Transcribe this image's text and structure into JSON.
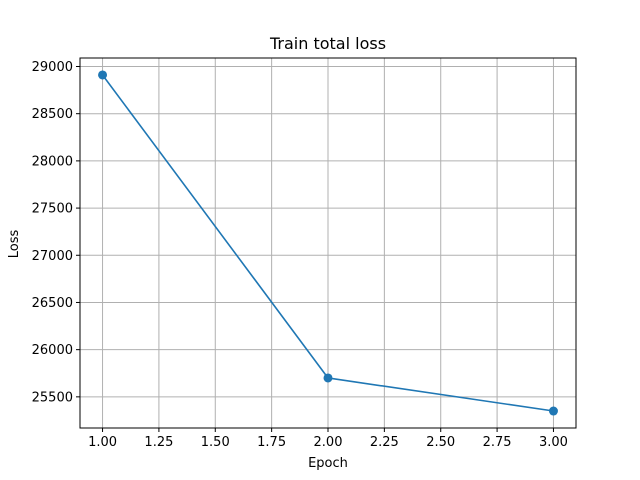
{
  "chart_data": {
    "type": "line",
    "title": "Train total loss",
    "xlabel": "Epoch",
    "ylabel": "Loss",
    "x": [
      1,
      2,
      3
    ],
    "series": [
      {
        "values": [
          28910,
          25700,
          25350
        ],
        "color": "#1f77b4",
        "marker": "circle"
      }
    ],
    "xlim": [
      0.9,
      3.1
    ],
    "ylim": [
      25170,
      29090
    ],
    "x_ticks": [
      1.0,
      1.25,
      1.5,
      1.75,
      2.0,
      2.25,
      2.5,
      2.75,
      3.0
    ],
    "x_tick_labels": [
      "1.00",
      "1.25",
      "1.50",
      "1.75",
      "2.00",
      "2.25",
      "2.50",
      "2.75",
      "3.00"
    ],
    "y_ticks": [
      25500,
      26000,
      26500,
      27000,
      27500,
      28000,
      28500,
      29000
    ],
    "y_tick_labels": [
      "25500",
      "26000",
      "26500",
      "27000",
      "27500",
      "28000",
      "28500",
      "29000"
    ],
    "grid": true,
    "grid_color": "#b0b0b0",
    "axis_color": "#000000"
  }
}
